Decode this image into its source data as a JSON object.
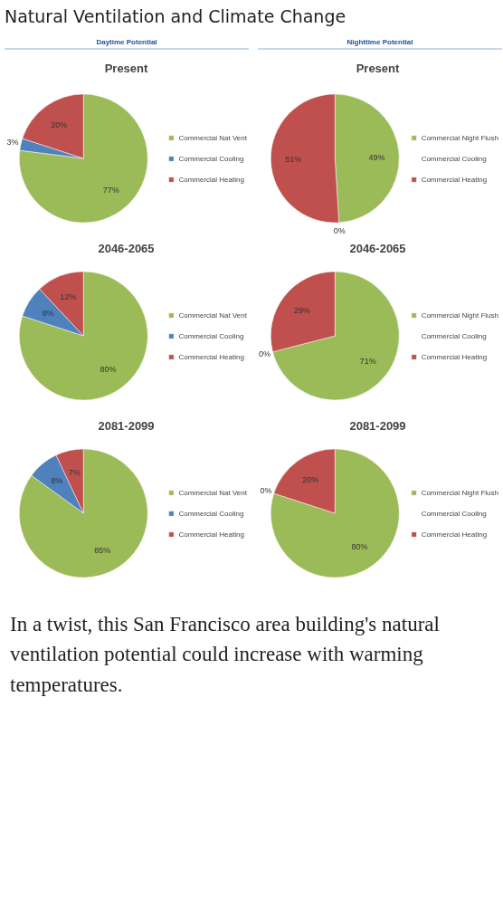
{
  "chart_data": [
    {
      "type": "pie",
      "title": "Present",
      "categories": [
        "Commercial Nat Vent",
        "Commercial Cooling",
        "Commercial Heating"
      ],
      "values": [
        77,
        3,
        20
      ],
      "value_labels": [
        "77%",
        "3%",
        "20%"
      ],
      "colors": [
        "#9bbb59",
        "#4f81bd",
        "#c0504d"
      ],
      "legend": "right",
      "annotations": [
        "Natural Ventilation and Climate Change",
        "Daytime Potential"
      ]
    },
    {
      "type": "pie",
      "title": "Present",
      "categories": [
        "Commercial Night Flush",
        "Commercial Cooling",
        "Commercial Heating"
      ],
      "values": [
        49,
        0,
        51
      ],
      "value_labels": [
        "49%",
        "0%",
        "51%"
      ],
      "colors": [
        "#9bbb59",
        "#4f81bd",
        "#c0504d"
      ],
      "legend": "right",
      "annotations": [
        "Nighttime Potential"
      ]
    },
    {
      "type": "pie",
      "title": "2046-2065",
      "categories": [
        "Commercial Nat Vent",
        "Commercial Cooling",
        "Commercial Heating"
      ],
      "values": [
        80,
        8,
        12
      ],
      "value_labels": [
        "80%",
        "8%",
        "12%"
      ],
      "colors": [
        "#9bbb59",
        "#4f81bd",
        "#c0504d"
      ],
      "legend": "right"
    },
    {
      "type": "pie",
      "title": "2046-2065",
      "categories": [
        "Commercial Night Flush",
        "Commercial Cooling",
        "Commercial Heating"
      ],
      "values": [
        71,
        0,
        29
      ],
      "value_labels": [
        "71%",
        "0%",
        "29%"
      ],
      "colors": [
        "#9bbb59",
        "#4f81bd",
        "#c0504d"
      ],
      "legend": "right"
    },
    {
      "type": "pie",
      "title": "2081-2099",
      "categories": [
        "Commercial Nat Vent",
        "Commercial Cooling",
        "Commercial Heating"
      ],
      "values": [
        85,
        8,
        7
      ],
      "value_labels": [
        "85%",
        "8%",
        "7%"
      ],
      "colors": [
        "#9bbb59",
        "#4f81bd",
        "#c0504d"
      ],
      "legend": "right"
    },
    {
      "type": "pie",
      "title": "2081-2099",
      "categories": [
        "Commercial Night Flush",
        "Commercial Cooling",
        "Commercial Heating"
      ],
      "values": [
        80,
        0,
        20
      ],
      "value_labels": [
        "80%",
        "0%",
        "20%"
      ],
      "colors": [
        "#9bbb59",
        "#4f81bd",
        "#c0504d"
      ],
      "legend": "right",
      "annotations": [
        "In a twist, this San Francisco area building's natural ventilation potential could increase with warming temperatures."
      ]
    }
  ]
}
